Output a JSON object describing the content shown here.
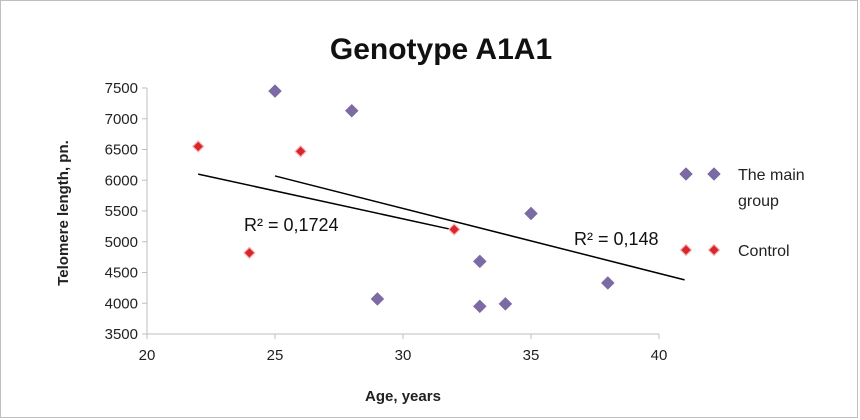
{
  "chart_data": {
    "type": "scatter",
    "title": "Genotype A1A1",
    "xlabel": "Age, years",
    "ylabel": "Telomere length, pn.",
    "xlim": [
      20,
      40
    ],
    "ylim": [
      3500,
      7500
    ],
    "xticks": [
      20,
      25,
      30,
      35,
      40
    ],
    "yticks": [
      3500,
      4000,
      4500,
      5000,
      5500,
      6000,
      6500,
      7000,
      7500
    ],
    "grid": false,
    "legend_position": "right",
    "series": [
      {
        "name": "The main group",
        "name_lines": [
          "The main",
          "group"
        ],
        "marker": "diamond",
        "color": "#7b6aa3",
        "points": [
          [
            25,
            7450
          ],
          [
            28,
            7130
          ],
          [
            29,
            4070
          ],
          [
            33,
            4680
          ],
          [
            33,
            3950
          ],
          [
            34,
            3990
          ],
          [
            35,
            5460
          ],
          [
            38,
            4330
          ]
        ],
        "trendline": {
          "type": "linear",
          "x": [
            25,
            41
          ],
          "y": [
            6070,
            4380
          ],
          "r2_label": "R² = 0,148"
        }
      },
      {
        "name": "Control",
        "name_lines": [
          "Control"
        ],
        "marker": "diamond",
        "color": "#d9262b",
        "points": [
          [
            22,
            6550
          ],
          [
            24,
            4820
          ],
          [
            26,
            6470
          ],
          [
            32,
            5200
          ]
        ],
        "trendline": {
          "type": "linear",
          "x": [
            22,
            32
          ],
          "y": [
            6100,
            5190
          ],
          "r2_label": "R² = 0,1724"
        }
      }
    ]
  }
}
